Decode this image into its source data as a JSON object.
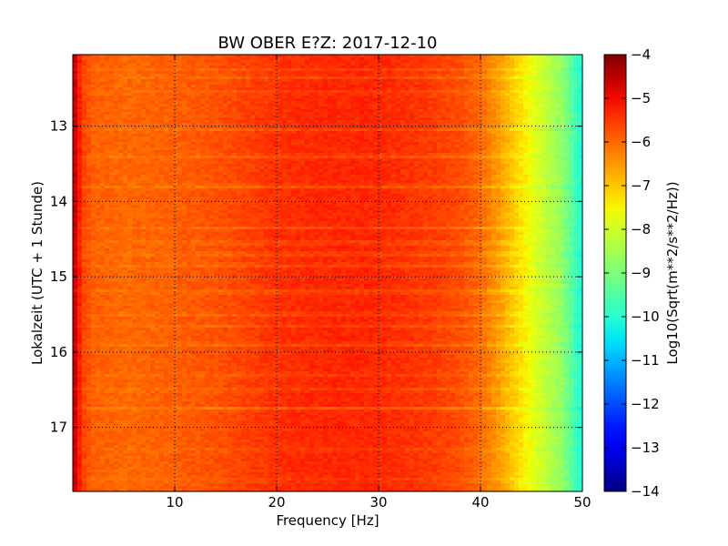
{
  "chart_data": {
    "type": "heatmap",
    "title": "BW OBER E?Z: 2017-12-10",
    "xlabel": "Frequency [Hz]",
    "ylabel": "Lokalzeit (UTC + 1 Stunde)",
    "colorbar_label": "Log10(Sqrt(m**2/s**2/Hz))",
    "xlim": [
      0,
      50
    ],
    "ylim": [
      12.05,
      17.85
    ],
    "y_inverted": true,
    "x_ticks": [
      10,
      20,
      30,
      40,
      50
    ],
    "x_tick_labels": [
      "10",
      "20",
      "30",
      "40",
      "50"
    ],
    "y_ticks": [
      13,
      14,
      15,
      16,
      17
    ],
    "y_tick_labels": [
      "13",
      "14",
      "15",
      "16",
      "17"
    ],
    "grid": true,
    "grid_style": "dotted",
    "colormap": "jet",
    "color_range": [
      -14,
      -4
    ],
    "colorbar_ticks": [
      -4,
      -5,
      -6,
      -7,
      -8,
      -9,
      -10,
      -11,
      -12,
      -13,
      -14
    ],
    "colorbar_tick_labels": [
      "−4",
      "−5",
      "−6",
      "−7",
      "−8",
      "−9",
      "−10",
      "−11",
      "−12",
      "−13",
      "−14"
    ],
    "frequency_profile": {
      "x": [
        0,
        0.3,
        1,
        2,
        5,
        10,
        15,
        20,
        25,
        30,
        35,
        38,
        40,
        42,
        44,
        46,
        48,
        50
      ],
      "value": [
        -4.5,
        -4.8,
        -5.6,
        -5.9,
        -6.0,
        -5.9,
        -5.7,
        -5.4,
        -5.3,
        -5.3,
        -5.5,
        -5.7,
        -6.0,
        -6.6,
        -7.3,
        -8.0,
        -8.7,
        -10.2
      ]
    },
    "bands": [
      {
        "t": 12.05,
        "delta": 0.0
      },
      {
        "t": 12.25,
        "delta": -0.3
      },
      {
        "t": 12.35,
        "delta": -0.4
      },
      {
        "t": 12.55,
        "delta": -0.3
      },
      {
        "t": 12.9,
        "delta": 0.0
      },
      {
        "t": 13.05,
        "delta": -0.35
      },
      {
        "t": 13.4,
        "delta": -0.5
      },
      {
        "t": 13.8,
        "delta": -0.5
      },
      {
        "t": 14.35,
        "delta": -0.4
      },
      {
        "t": 14.55,
        "delta": -0.45
      },
      {
        "t": 14.7,
        "delta": -0.5
      },
      {
        "t": 14.85,
        "delta": -0.45
      },
      {
        "t": 15.2,
        "delta": -0.5
      },
      {
        "t": 15.5,
        "delta": -0.4
      },
      {
        "t": 15.65,
        "delta": -0.35
      },
      {
        "t": 15.9,
        "delta": -0.45
      },
      {
        "t": 16.3,
        "delta": -0.3
      },
      {
        "t": 16.5,
        "delta": -0.3
      },
      {
        "t": 16.75,
        "delta": -0.6
      },
      {
        "t": 17.3,
        "delta": -0.25
      },
      {
        "t": 17.7,
        "delta": -0.3
      }
    ]
  }
}
